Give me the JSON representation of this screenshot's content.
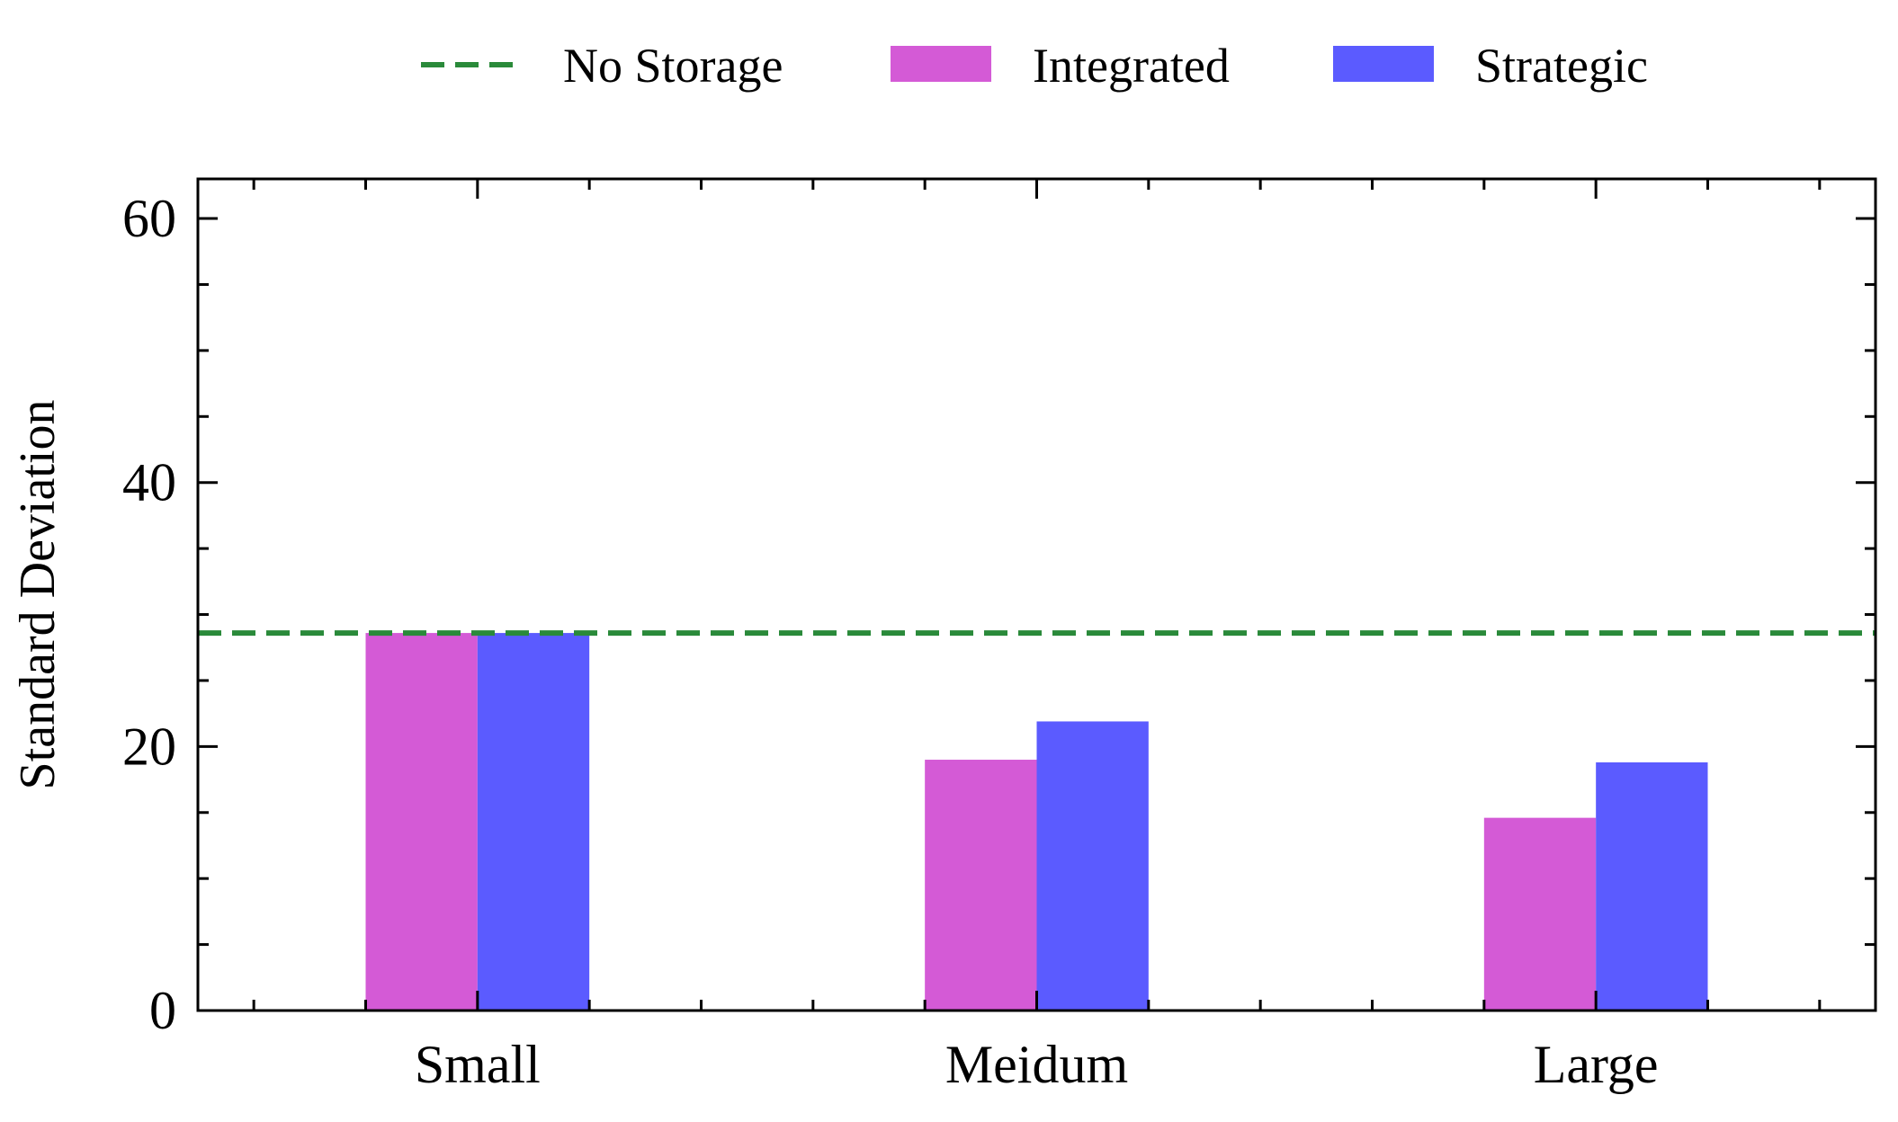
{
  "chart_data": {
    "type": "bar",
    "categories": [
      "Small",
      "Meidum",
      "Large"
    ],
    "series": [
      {
        "name": "Integrated",
        "values": [
          28.6,
          19.0,
          14.6
        ],
        "color": "#d45ad6"
      },
      {
        "name": "Strategic",
        "values": [
          28.6,
          21.9,
          18.8
        ],
        "color": "#5b5bff"
      }
    ],
    "reference_lines": [
      {
        "name": "No Storage",
        "value": 28.6,
        "color": "#2a8a3a",
        "style": "dashed"
      }
    ],
    "xlabel": "",
    "ylabel": "Standard Deviation",
    "ylim": [
      0,
      63
    ],
    "yticks": [
      0,
      20,
      40,
      60
    ],
    "ytick_labels": [
      "0",
      "20",
      "40",
      "60"
    ],
    "grid": false,
    "legend": {
      "position": "top-center",
      "entries": [
        "No Storage",
        "Integrated",
        "Strategic"
      ]
    }
  }
}
